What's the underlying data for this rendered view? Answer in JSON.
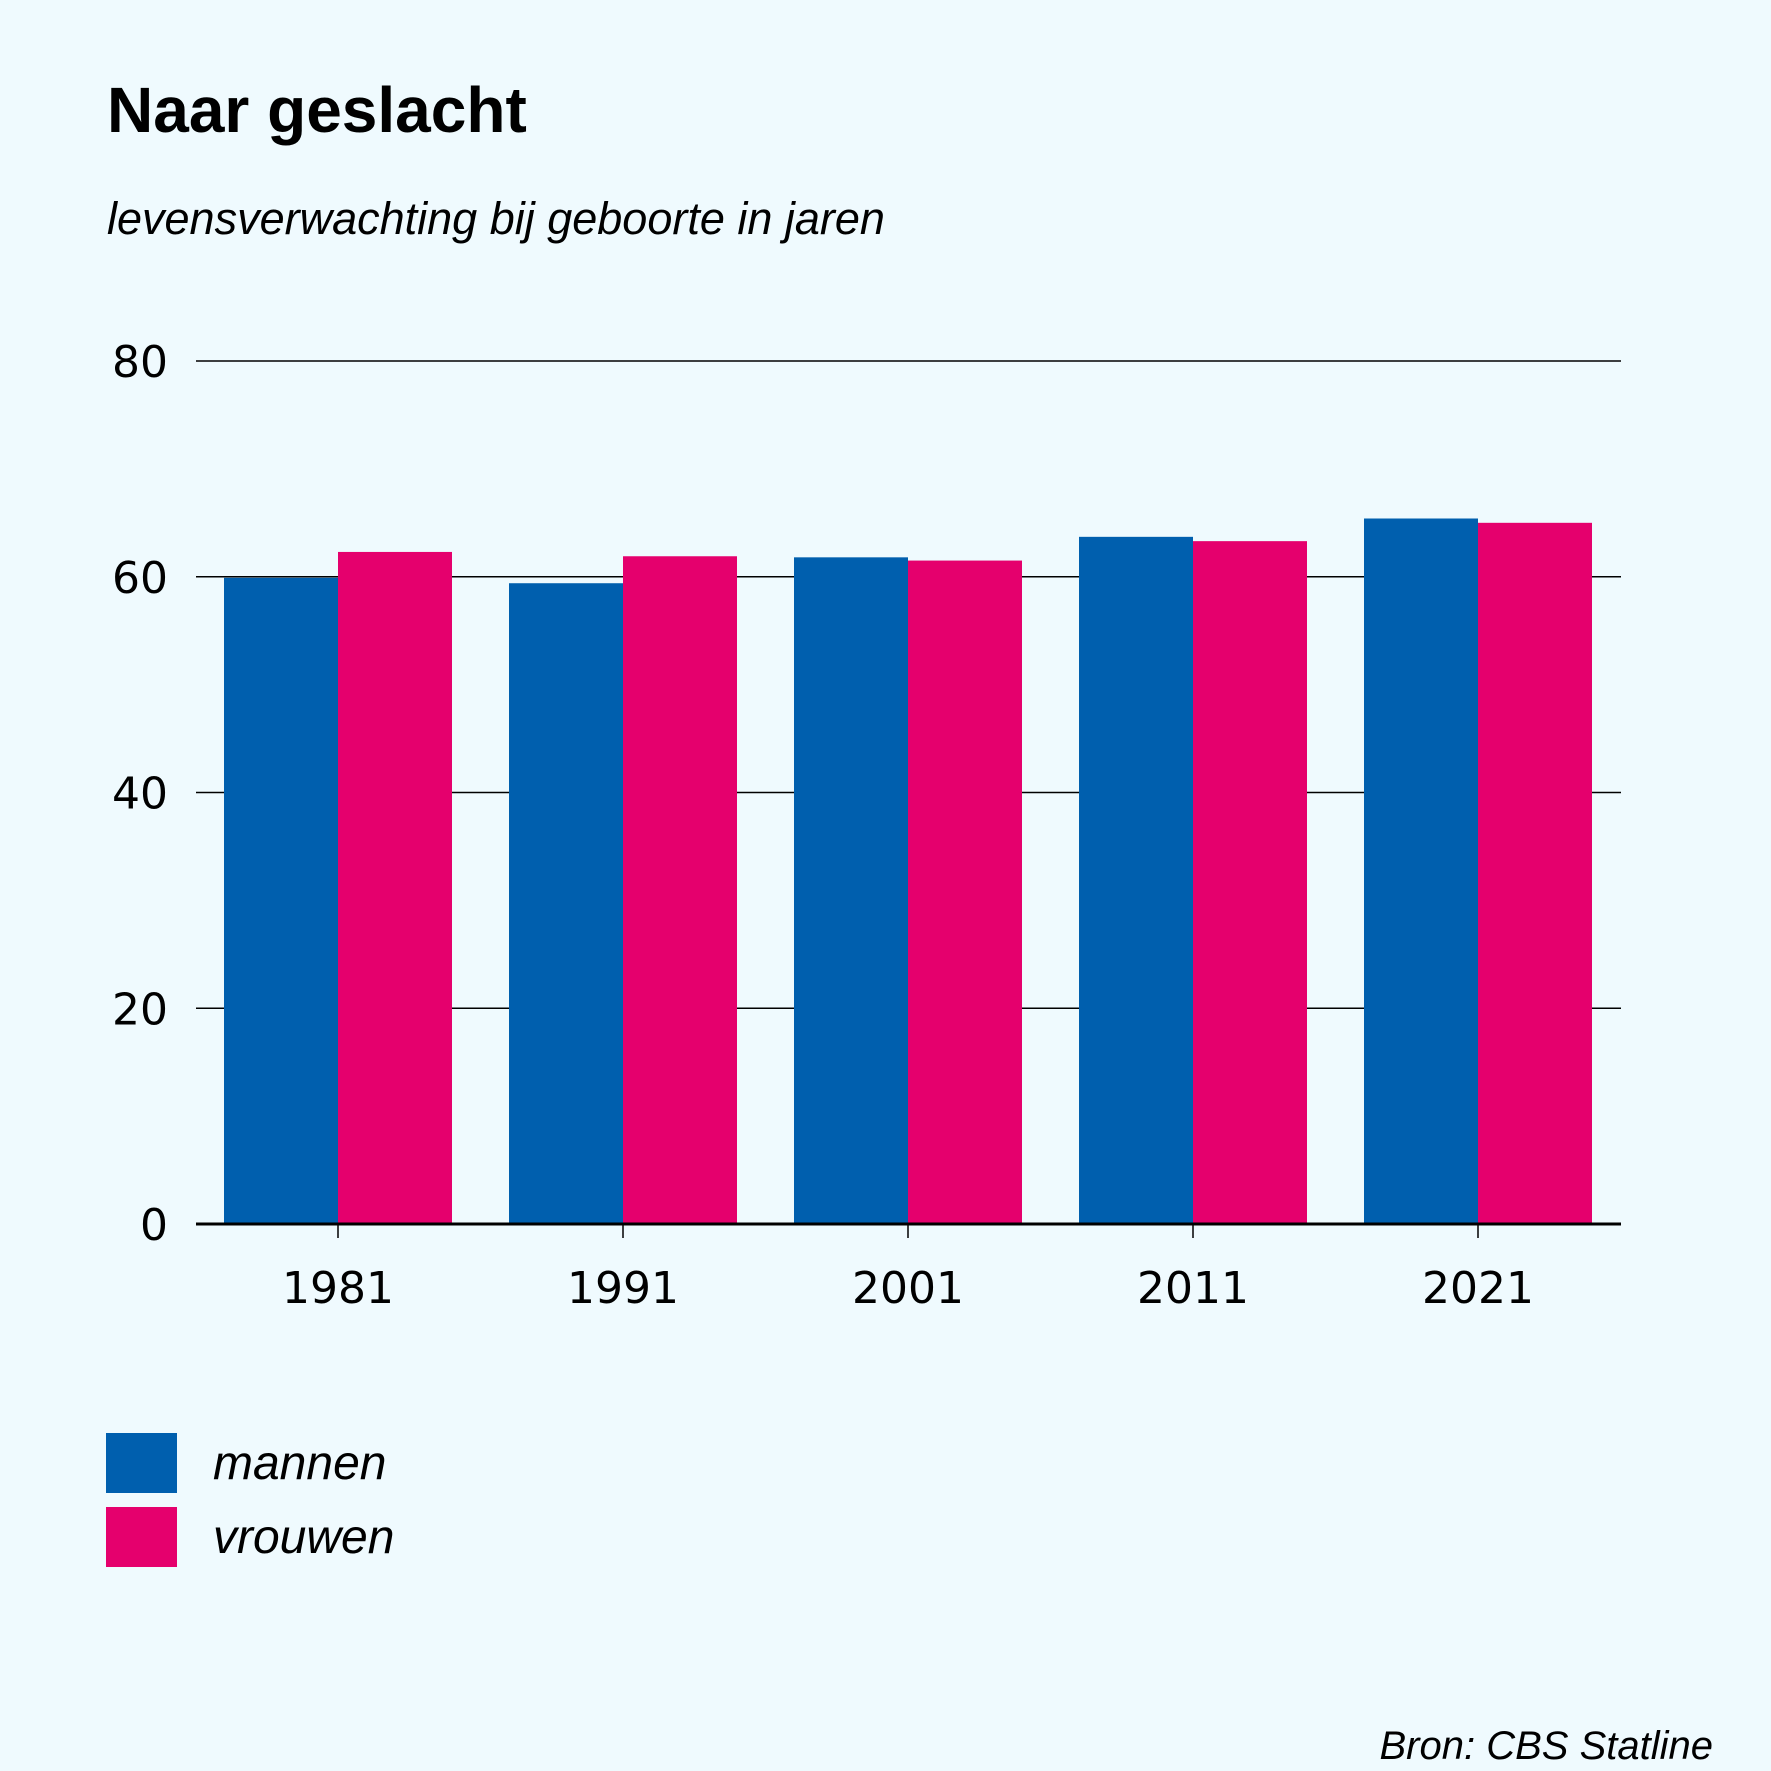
{
  "chart_data": {
    "type": "bar",
    "title": "Naar geslacht",
    "subtitle": "levensverwachting bij geboorte in jaren",
    "categories": [
      "1981",
      "1991",
      "2001",
      "2011",
      "2021"
    ],
    "series": [
      {
        "name": "mannen",
        "color": "#005fae",
        "values": [
          59.9,
          59.4,
          61.8,
          63.7,
          65.4
        ]
      },
      {
        "name": "vrouwen",
        "color": "#e5006d",
        "values": [
          62.3,
          61.9,
          61.5,
          63.3,
          65.0
        ]
      }
    ],
    "y_ticks": [
      "0",
      "20",
      "40",
      "60",
      "80"
    ],
    "ylim": [
      0,
      80
    ],
    "xlabel": "",
    "ylabel": "",
    "grid": true,
    "legend_position": "bottom-left"
  },
  "source": "Bron: CBS Statline"
}
